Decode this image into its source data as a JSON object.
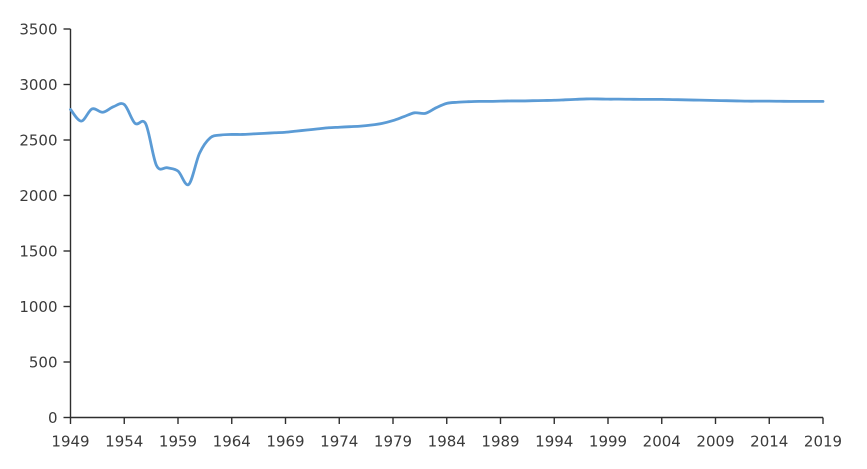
{
  "page": {
    "background_color": "#ffffff"
  },
  "chart_data": {
    "type": "line",
    "title": "",
    "xlabel": "",
    "ylabel": "",
    "legend": "none",
    "grid": false,
    "line_color": "#5b9bd5",
    "axis_color": "#2e2e2e",
    "tick_label_color": "#3b3b3b",
    "xlim": [
      1949,
      2019
    ],
    "ylim": [
      0,
      3500
    ],
    "x_tick_labels": [
      1949,
      1954,
      1959,
      1964,
      1969,
      1974,
      1979,
      1984,
      1989,
      1994,
      1999,
      2004,
      2009,
      2014,
      2019
    ],
    "y_tick_labels": [
      0,
      500,
      1000,
      1500,
      2000,
      2500,
      3000,
      3500
    ],
    "x": [
      1949,
      1950,
      1951,
      1952,
      1953,
      1954,
      1955,
      1956,
      1957,
      1958,
      1959,
      1960,
      1961,
      1962,
      1963,
      1964,
      1965,
      1966,
      1967,
      1968,
      1969,
      1970,
      1971,
      1972,
      1973,
      1974,
      1975,
      1976,
      1977,
      1978,
      1979,
      1980,
      1981,
      1982,
      1983,
      1984,
      1985,
      1986,
      1987,
      1988,
      1989,
      1990,
      1991,
      1992,
      1993,
      1994,
      1995,
      1996,
      1997,
      1998,
      1999,
      2000,
      2001,
      2002,
      2003,
      2004,
      2005,
      2006,
      2007,
      2008,
      2009,
      2010,
      2011,
      2012,
      2013,
      2014,
      2015,
      2016,
      2017,
      2018,
      2019
    ],
    "values": [
      2775,
      2670,
      2780,
      2750,
      2800,
      2820,
      2650,
      2645,
      2270,
      2250,
      2220,
      2100,
      2380,
      2520,
      2545,
      2550,
      2550,
      2555,
      2560,
      2565,
      2570,
      2580,
      2590,
      2600,
      2610,
      2615,
      2620,
      2625,
      2635,
      2650,
      2675,
      2710,
      2745,
      2740,
      2790,
      2830,
      2840,
      2845,
      2848,
      2848,
      2850,
      2852,
      2852,
      2854,
      2856,
      2858,
      2862,
      2866,
      2870,
      2870,
      2868,
      2868,
      2867,
      2866,
      2866,
      2866,
      2864,
      2862,
      2860,
      2858,
      2856,
      2854,
      2852,
      2850,
      2850,
      2850,
      2849,
      2848,
      2848,
      2848,
      2848
    ]
  }
}
